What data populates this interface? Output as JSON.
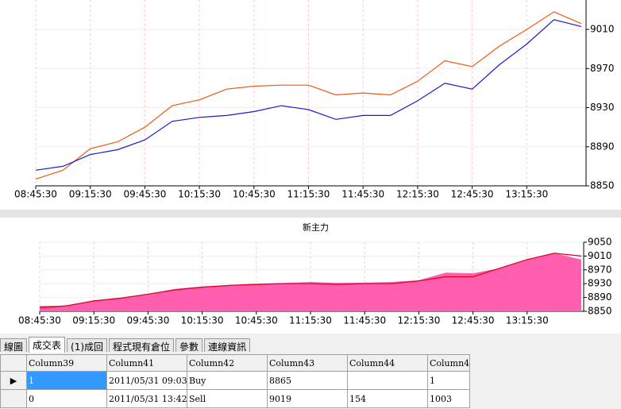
{
  "chart_data": [
    {
      "type": "line",
      "categories": [
        "08:45:30",
        null,
        "09:15:30",
        null,
        "09:45:30",
        null,
        "10:15:30",
        null,
        "10:45:30",
        null,
        "11:15:30",
        null,
        "11:45:30",
        null,
        "12:15:30",
        null,
        "12:45:30",
        null,
        "13:15:30",
        null,
        null
      ],
      "series": [
        {
          "color": "#f05a14",
          "style": "line",
          "values": [
            8857,
            8866,
            8888,
            8895,
            8910,
            8932,
            8938,
            8949,
            8952,
            8953,
            8953,
            8943,
            8945,
            8943,
            8957,
            8978,
            8972,
            8993,
            9010,
            9028,
            9016
          ]
        },
        {
          "color": "#1c1cc8",
          "style": "line",
          "values": [
            8866,
            8870,
            8882,
            8887,
            8897,
            8916,
            8920,
            8922,
            8926,
            8932,
            8928,
            8918,
            8922,
            8922,
            8937,
            8955,
            8949,
            8974,
            8995,
            9020,
            9013
          ]
        }
      ],
      "ylim": [
        8850,
        9045
      ],
      "yticks": [
        8850,
        8890,
        8930,
        8970,
        9010
      ],
      "grid": true
    },
    {
      "type": "area",
      "title": "新主力",
      "categories": [
        "08:45:30",
        null,
        "09:15:30",
        null,
        "09:45:30",
        null,
        "10:15:30",
        null,
        "10:45:30",
        null,
        "11:15:30",
        null,
        "11:45:30",
        null,
        "12:15:30",
        null,
        "12:45:30",
        null,
        "13:15:30",
        null,
        null
      ],
      "series": [
        {
          "color": "#ff5fae",
          "style": "area",
          "values": [
            8866,
            8866,
            8882,
            8890,
            8900,
            8915,
            8922,
            8926,
            8930,
            8932,
            8935,
            8932,
            8933,
            8935,
            8940,
            8962,
            8960,
            8975,
            9000,
            9018,
            9000
          ]
        },
        {
          "color": "#e00018",
          "style": "line",
          "values": [
            8860,
            8866,
            8880,
            8888,
            8900,
            8912,
            8920,
            8925,
            8928,
            8930,
            8930,
            8928,
            8930,
            8930,
            8938,
            8950,
            8950,
            8975,
            9000,
            9018,
            9010
          ]
        }
      ],
      "ylim": [
        8850,
        9050
      ],
      "yticks": [
        8850,
        8890,
        8930,
        8970,
        9010,
        9050
      ],
      "grid": true
    }
  ],
  "tabs": [
    "線圖",
    "成交表",
    "(1)成回",
    "程式現有倉位",
    "參數",
    "連線資訊"
  ],
  "table": {
    "columns": [
      "Column39",
      "Column41",
      "Column42",
      "Column43",
      "Column44",
      "Column4"
    ],
    "rows": [
      [
        "1",
        "2011/05/31 09:03...",
        "Buy",
        "8865",
        null,
        "1"
      ],
      [
        "0",
        "2011/05/31 13:42...",
        "Sell",
        "9019",
        "154",
        "1003"
      ]
    ]
  }
}
